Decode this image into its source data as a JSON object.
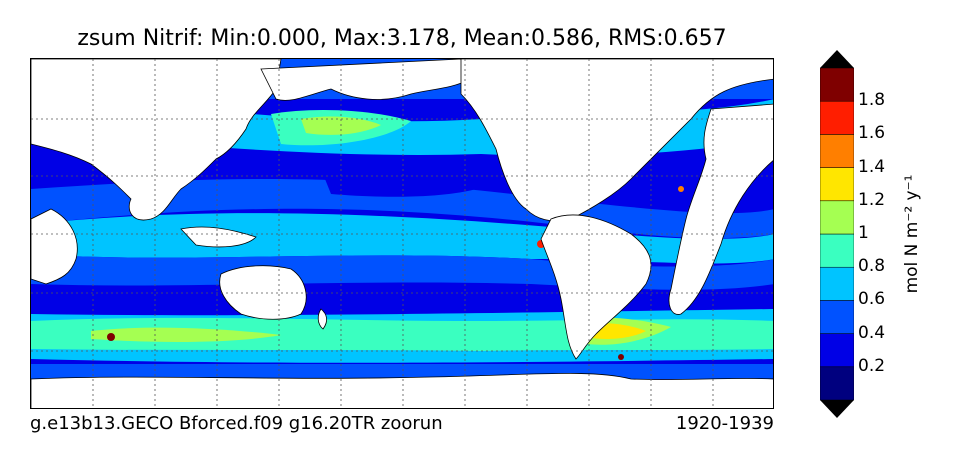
{
  "title": "zsum Nitrif: Min:0.000, Max:3.178, Mean:0.586, RMS:0.657",
  "footer": {
    "case_name": "g.e13b13.GECO Bforced.f09 g16.20TR zoorun",
    "period": "1920-1939"
  },
  "colorbar": {
    "unit_label": "mol N m⁻² y⁻¹",
    "tick_labels": [
      "1.8",
      "1.6",
      "1.4",
      "1.2",
      "1",
      "0.8",
      "0.6",
      "0.4",
      "0.2"
    ],
    "levels": [
      0.1,
      0.3,
      0.5,
      0.7,
      0.9,
      1.1,
      1.3,
      1.5,
      1.7,
      1.9
    ],
    "colors": [
      "#00007f",
      "#0000e6",
      "#0052ff",
      "#00c4ff",
      "#3affc0",
      "#a5ff52",
      "#ffe600",
      "#ff7f00",
      "#ff1e00",
      "#7f0000"
    ],
    "extend": "both"
  },
  "map": {
    "projection": "cylindrical",
    "land_color": "#ffffff",
    "grid": true,
    "gridline_style": "dotted"
  }
}
